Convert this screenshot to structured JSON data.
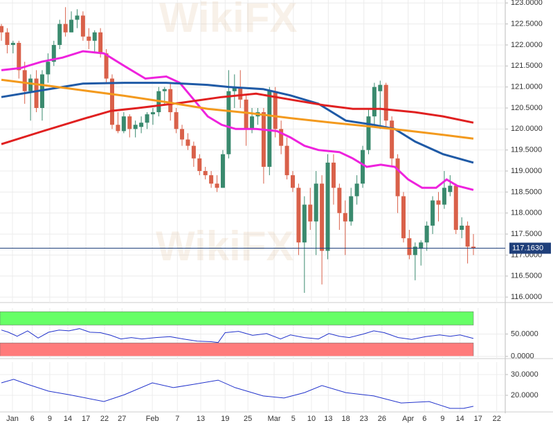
{
  "chart_data": [
    {
      "type": "candlestick",
      "watermark": "WikiFX",
      "xlim": [
        -0.24,
        86.46
      ],
      "ylim": [
        115.87,
        123.07
      ],
      "grid": true,
      "up_color": "#3a8a6e",
      "down_color": "#d9614a",
      "open": [
        122.45,
        122.3,
        122.0,
        122.05,
        121.4,
        120.9,
        121.2,
        120.5,
        121.3,
        121.6,
        122.0,
        122.5,
        122.3,
        122.6,
        122.7,
        122.2,
        122.1,
        122.3,
        121.8,
        121.2,
        120.1,
        119.95,
        120.3,
        120.0,
        120.05,
        120.15,
        120.35,
        120.4,
        120.9,
        120.95,
        120.4,
        120.0,
        119.75,
        119.6,
        119.3,
        119.0,
        118.9,
        118.7,
        118.6,
        119.4,
        120.9,
        121.0,
        120.7,
        120.0,
        120.3,
        120.4,
        119.1,
        120.9,
        120.0,
        119.6,
        118.9,
        118.6,
        117.3,
        118.2,
        117.8,
        118.7,
        117.1,
        119.2,
        118.6,
        118.0,
        117.8,
        118.4,
        118.7,
        119.5,
        120.3,
        120.9,
        121.05,
        120.2,
        119.3,
        118.4,
        117.4,
        117.0,
        117.15,
        117.3,
        117.7,
        118.3,
        118.2,
        118.5,
        118.65,
        117.6,
        117.7,
        117.2
      ],
      "high": [
        122.5,
        122.4,
        122.1,
        122.1,
        121.6,
        121.3,
        121.4,
        121.4,
        121.8,
        122.1,
        122.6,
        122.9,
        122.8,
        122.85,
        122.8,
        122.4,
        122.35,
        122.4,
        121.9,
        121.3,
        120.4,
        120.4,
        120.35,
        120.2,
        120.3,
        120.4,
        120.5,
        121.0,
        121.0,
        121.1,
        120.5,
        120.1,
        119.9,
        119.7,
        119.4,
        119.1,
        119.0,
        118.9,
        119.5,
        121.4,
        121.3,
        121.4,
        120.8,
        120.5,
        120.5,
        120.5,
        121.0,
        121.0,
        120.2,
        119.8,
        119.0,
        118.7,
        118.4,
        118.6,
        119.0,
        118.9,
        119.4,
        119.4,
        118.7,
        118.3,
        118.6,
        118.9,
        119.6,
        120.5,
        121.1,
        121.15,
        121.1,
        120.3,
        119.4,
        118.5,
        117.6,
        117.3,
        117.35,
        117.8,
        118.4,
        118.5,
        119.0,
        118.9,
        118.7,
        117.9,
        117.8,
        117.5
      ],
      "low": [
        122.1,
        121.8,
        121.8,
        121.2,
        120.6,
        120.2,
        120.4,
        120.2,
        121.1,
        121.5,
        121.9,
        122.2,
        122.3,
        122.4,
        122.1,
        121.9,
        121.8,
        121.7,
        121.1,
        120.0,
        119.9,
        119.9,
        119.8,
        119.8,
        119.9,
        120.0,
        120.1,
        120.3,
        120.6,
        120.2,
        119.9,
        119.6,
        119.5,
        119.1,
        118.9,
        118.8,
        118.6,
        118.5,
        118.6,
        119.3,
        120.5,
        120.5,
        119.6,
        119.9,
        120.1,
        118.7,
        118.9,
        119.8,
        119.4,
        118.8,
        118.5,
        117.0,
        116.1,
        117.6,
        117.0,
        116.3,
        116.9,
        118.2,
        117.6,
        117.0,
        117.7,
        118.2,
        118.6,
        119.4,
        120.1,
        120.0,
        120.0,
        119.1,
        118.0,
        117.3,
        116.9,
        116.4,
        116.75,
        117.1,
        117.5,
        117.8,
        118.1,
        118.4,
        117.5,
        117.4,
        116.8,
        117.0
      ],
      "close": [
        122.3,
        122.0,
        122.05,
        121.4,
        120.9,
        121.2,
        120.5,
        121.3,
        121.6,
        122.0,
        122.5,
        122.3,
        122.6,
        122.7,
        122.2,
        122.1,
        122.3,
        121.8,
        121.2,
        120.1,
        119.95,
        120.3,
        120.0,
        120.1,
        120.15,
        120.35,
        120.4,
        120.9,
        120.95,
        120.4,
        120.0,
        119.75,
        119.6,
        119.3,
        119.0,
        118.9,
        118.7,
        118.6,
        119.4,
        120.9,
        121.0,
        120.7,
        120.0,
        120.3,
        120.4,
        119.1,
        120.9,
        120.0,
        119.6,
        118.9,
        118.6,
        117.3,
        118.2,
        117.8,
        118.7,
        117.1,
        119.2,
        118.6,
        118.0,
        117.8,
        118.4,
        118.7,
        119.5,
        120.3,
        121.0,
        121.05,
        120.2,
        119.3,
        118.4,
        117.4,
        117.0,
        117.2,
        117.3,
        117.7,
        118.3,
        118.2,
        118.6,
        118.65,
        117.6,
        117.7,
        117.2,
        117.163
      ],
      "series": [
        {
          "color": "#ee22dd",
          "x": [
            0,
            3.3,
            6.9,
            10.5,
            14,
            17.6,
            21.1,
            24.7,
            28.3,
            30.6,
            33,
            35.4,
            37.8,
            40.2,
            43.7,
            47.3,
            49.6,
            52,
            54.4,
            58,
            60.3,
            62.7,
            65.1,
            67.5,
            69.8,
            72.2,
            74.6,
            76.4,
            78.2,
            81
          ],
          "values": [
            121.4,
            121.45,
            121.6,
            121.7,
            121.85,
            121.8,
            121.5,
            121.2,
            121.25,
            121.1,
            120.7,
            120.3,
            120.1,
            120.0,
            120.0,
            119.95,
            119.8,
            119.6,
            119.5,
            119.45,
            119.3,
            119.1,
            119.15,
            119.1,
            118.8,
            118.6,
            118.6,
            118.8,
            118.65,
            118.55
          ]
        },
        {
          "color": "#1f5aa6",
          "x": [
            0,
            6.9,
            14,
            21.1,
            28.3,
            35.4,
            39,
            44.9,
            49.6,
            54.4,
            59.1,
            63.9,
            67.5,
            71,
            75.8,
            81
          ],
          "values": [
            120.76,
            120.92,
            121.08,
            121.1,
            121.1,
            121.05,
            121.0,
            120.95,
            120.8,
            120.6,
            120.2,
            120.1,
            120.0,
            119.7,
            119.4,
            119.2
          ]
        },
        {
          "color": "#e02020",
          "x": [
            0,
            6.9,
            14,
            18.8,
            23.5,
            30.6,
            37.8,
            43.7,
            49.6,
            55.6,
            60.3,
            65.1,
            71,
            75.8,
            81
          ],
          "values": [
            119.64,
            119.94,
            120.24,
            120.43,
            120.5,
            120.62,
            120.76,
            120.84,
            120.7,
            120.56,
            120.48,
            120.48,
            120.4,
            120.3,
            120.15
          ]
        },
        {
          "color": "#f39a1e",
          "x": [
            0,
            6.9,
            14,
            21.1,
            28.3,
            35.4,
            42.5,
            49.6,
            56.8,
            63.9,
            71,
            75.8,
            81
          ],
          "values": [
            121.17,
            121.05,
            120.92,
            120.79,
            120.64,
            120.48,
            120.38,
            120.26,
            120.15,
            120.05,
            119.94,
            119.86,
            119.77
          ]
        }
      ],
      "last_price": {
        "value": 117.163,
        "label": "117.1630"
      },
      "last_color": "#1f3f7a",
      "yticks": [
        {
          "value": 116,
          "label": "116.0000"
        },
        {
          "value": 116.5,
          "label": "116.5000"
        },
        {
          "value": 117,
          "label": "117.0000"
        },
        {
          "value": 117.5,
          "label": "117.5000"
        },
        {
          "value": 118,
          "label": "118.0000"
        },
        {
          "value": 118.5,
          "label": "118.5000"
        },
        {
          "value": 119,
          "label": "119.0000"
        },
        {
          "value": 119.5,
          "label": "119.5000"
        },
        {
          "value": 120,
          "label": "120.0000"
        },
        {
          "value": 120.5,
          "label": "120.5000"
        },
        {
          "value": 121,
          "label": "121.0000"
        },
        {
          "value": 121.5,
          "label": "121.5000"
        },
        {
          "value": 122,
          "label": "122.0000"
        },
        {
          "value": 122.5,
          "label": "122.5000"
        },
        {
          "value": 123,
          "label": "123.0000"
        }
      ]
    },
    {
      "type": "line",
      "xlim": [
        -0.24,
        86.46
      ],
      "ylim": [
        -5,
        108
      ],
      "grid": true,
      "bands": [
        {
          "from": 70,
          "to": 100,
          "color": "#66ff66"
        },
        {
          "from": 0,
          "to": 30,
          "color": "#ff7b7b"
        }
      ],
      "series": [
        {
          "color": "#2233cc",
          "x": [
            0,
            1.2,
            2.7,
            4.5,
            6.3,
            8.1,
            9.9,
            11.6,
            13.4,
            15.2,
            17,
            18.8,
            20.5,
            22.3,
            24.1,
            26.5,
            28.9,
            31.2,
            33.6,
            36,
            37.2,
            38.4,
            40.7,
            43.1,
            45.5,
            47.9,
            49.6,
            52,
            54.4,
            56.2,
            58,
            59.7,
            62.1,
            63.9,
            65.7,
            68.1,
            70.4,
            72.8,
            75.2,
            77,
            78.7,
            81
          ],
          "values": [
            59,
            54,
            45,
            57,
            41,
            54,
            59,
            57,
            62,
            54,
            53,
            47,
            39,
            42,
            39,
            42,
            44,
            39,
            34,
            33,
            31,
            53,
            56,
            47,
            51,
            39,
            48,
            42,
            39,
            51,
            45,
            42,
            50,
            57,
            53,
            42,
            38,
            44,
            48,
            45,
            48,
            40
          ]
        }
      ],
      "yticks": [
        {
          "value": 0,
          "label": "0.0000"
        },
        {
          "value": 50,
          "label": "50.0000"
        }
      ]
    },
    {
      "type": "line",
      "xlim": [
        -0.24,
        86.46
      ],
      "ylim": [
        12,
        36
      ],
      "grid": true,
      "series": [
        {
          "color": "#2233cc",
          "x": [
            0,
            2.1,
            4.5,
            8.1,
            11.6,
            17.6,
            21.1,
            25.9,
            29.5,
            33,
            37.2,
            40.1,
            44.9,
            48.5,
            52,
            55,
            59.1,
            63.9,
            68.6,
            73.4,
            77,
            79.3,
            81
          ],
          "values": [
            26,
            27.7,
            25.3,
            22,
            20.3,
            17,
            20.3,
            26,
            23.7,
            25.3,
            27.3,
            23.7,
            19.7,
            18.7,
            21.3,
            24.7,
            21.3,
            19.7,
            16.3,
            17,
            13.7,
            13.7,
            14.7
          ]
        }
      ],
      "yticks": [
        {
          "value": 20,
          "label": "20.0000"
        },
        {
          "value": 30,
          "label": "30.0000"
        }
      ],
      "xticks": [
        {
          "value": 1.9,
          "label": "Jan"
        },
        {
          "value": 5.3,
          "label": "6"
        },
        {
          "value": 8.3,
          "label": "9"
        },
        {
          "value": 11.4,
          "label": "14"
        },
        {
          "value": 14.5,
          "label": "17"
        },
        {
          "value": 17.7,
          "label": "22"
        },
        {
          "value": 20.7,
          "label": "27"
        },
        {
          "value": 25.9,
          "label": "Feb"
        },
        {
          "value": 30.2,
          "label": "7"
        },
        {
          "value": 34.2,
          "label": "13"
        },
        {
          "value": 38.4,
          "label": "19"
        },
        {
          "value": 42.3,
          "label": "25"
        },
        {
          "value": 46.8,
          "label": "Mar"
        },
        {
          "value": 50.1,
          "label": "5"
        },
        {
          "value": 53.2,
          "label": "10"
        },
        {
          "value": 56.1,
          "label": "13"
        },
        {
          "value": 59.1,
          "label": "18"
        },
        {
          "value": 62.2,
          "label": "23"
        },
        {
          "value": 65.3,
          "label": "26"
        },
        {
          "value": 69.8,
          "label": "Apr"
        },
        {
          "value": 72.6,
          "label": "6"
        },
        {
          "value": 75.7,
          "label": "9"
        },
        {
          "value": 78.7,
          "label": "14"
        },
        {
          "value": 81.8,
          "label": "17"
        },
        {
          "value": 85.0,
          "label": "22"
        }
      ]
    }
  ]
}
